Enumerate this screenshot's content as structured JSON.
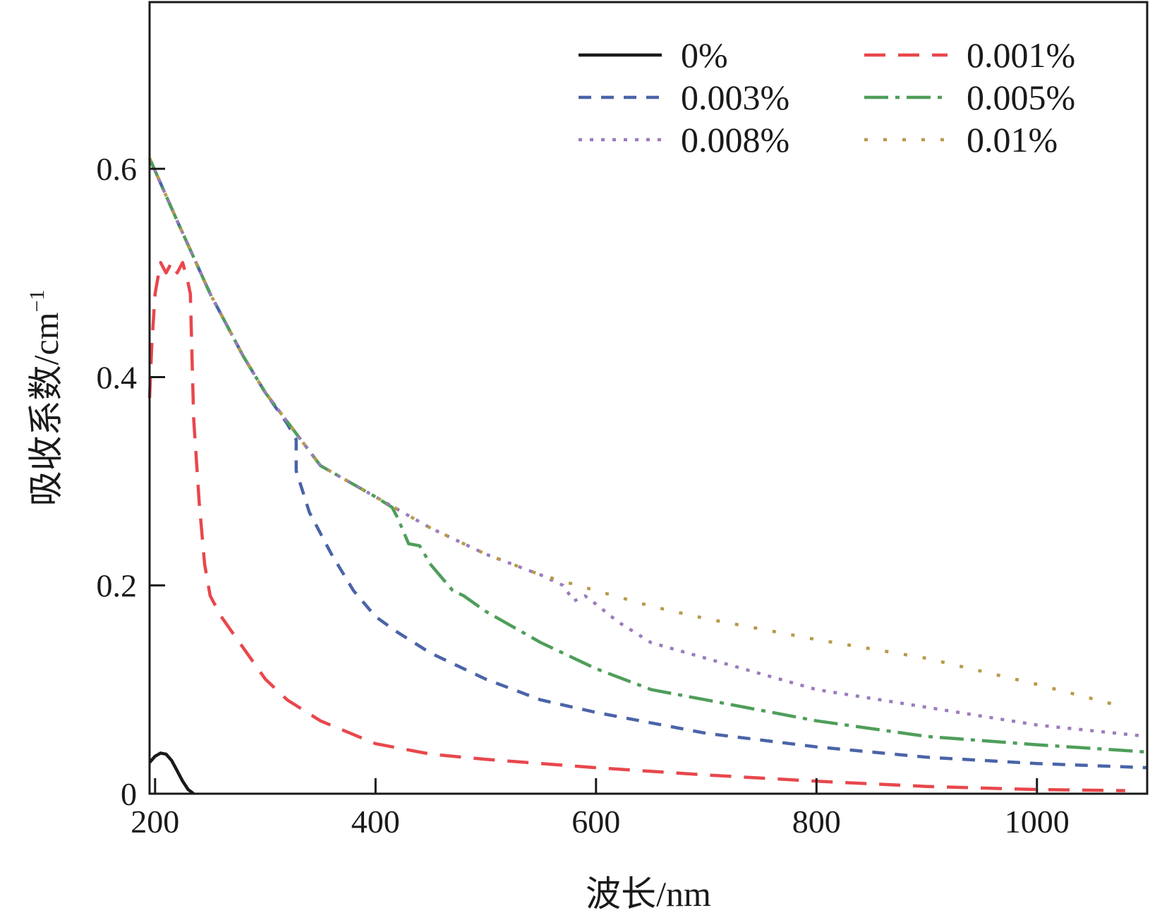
{
  "chart_data": {
    "type": "line",
    "xlabel": "波长/nm",
    "ylabel": "吸收系数/cm",
    "ylabel_sup": "−1",
    "xlim": [
      195,
      1100
    ],
    "ylim": [
      0,
      0.76
    ],
    "xticks": [
      200,
      400,
      600,
      800,
      1000
    ],
    "xtick_labels": [
      "200",
      "400",
      "600",
      "800",
      "1000"
    ],
    "yticks": [
      0,
      0.2,
      0.4,
      0.6
    ],
    "ytick_labels": [
      "0",
      "0.2",
      "0.4",
      "0.6"
    ],
    "grid": false,
    "legend_position": "top-right",
    "series": [
      {
        "name": "0%",
        "color": "#1a1a1a",
        "style": "solid",
        "x": [
          195,
          200,
          205,
          210,
          215,
          220,
          225,
          230,
          235
        ],
        "y": [
          0.03,
          0.036,
          0.039,
          0.038,
          0.032,
          0.022,
          0.012,
          0.004,
          0.0
        ]
      },
      {
        "name": "0.001%",
        "color": "#e8474c",
        "style": "dashed",
        "x": [
          195,
          197,
          200,
          205,
          210,
          215,
          220,
          225,
          230,
          232,
          235,
          240,
          245,
          250,
          260,
          270,
          280,
          300,
          320,
          350,
          400,
          450,
          500,
          600,
          700,
          800,
          900,
          1000,
          1080
        ],
        "y": [
          0.38,
          0.43,
          0.48,
          0.51,
          0.5,
          0.51,
          0.5,
          0.51,
          0.49,
          0.48,
          0.36,
          0.28,
          0.22,
          0.19,
          0.17,
          0.155,
          0.14,
          0.11,
          0.09,
          0.07,
          0.048,
          0.038,
          0.033,
          0.025,
          0.018,
          0.012,
          0.007,
          0.004,
          0.003
        ]
      },
      {
        "name": "0.003%",
        "color": "#4a64a8",
        "style": "dashed-short",
        "x": [
          195,
          220,
          250,
          280,
          300,
          320,
          328,
          328,
          340,
          360,
          380,
          400,
          420,
          450,
          500,
          550,
          600,
          700,
          800,
          900,
          1000,
          1100
        ],
        "y": [
          0.61,
          0.55,
          0.48,
          0.42,
          0.385,
          0.355,
          0.34,
          0.31,
          0.27,
          0.23,
          0.195,
          0.17,
          0.155,
          0.135,
          0.11,
          0.09,
          0.078,
          0.058,
          0.045,
          0.035,
          0.029,
          0.025
        ]
      },
      {
        "name": "0.005%",
        "color": "#4e9e5a",
        "style": "dash-dot",
        "x": [
          195,
          220,
          250,
          280,
          300,
          350,
          400,
          415,
          420,
          430,
          440,
          450,
          470,
          480,
          500,
          550,
          600,
          650,
          700,
          800,
          900,
          1000,
          1100
        ],
        "y": [
          0.61,
          0.55,
          0.48,
          0.42,
          0.385,
          0.315,
          0.285,
          0.275,
          0.265,
          0.24,
          0.238,
          0.22,
          0.195,
          0.19,
          0.175,
          0.145,
          0.12,
          0.1,
          0.09,
          0.07,
          0.055,
          0.047,
          0.04
        ]
      },
      {
        "name": "0.008%",
        "color": "#9b7bbd",
        "style": "dotted",
        "x": [
          195,
          220,
          250,
          280,
          300,
          350,
          400,
          450,
          500,
          550,
          570,
          580,
          590,
          600,
          620,
          650,
          700,
          800,
          900,
          1000,
          1100
        ],
        "y": [
          0.61,
          0.55,
          0.48,
          0.42,
          0.385,
          0.315,
          0.285,
          0.255,
          0.23,
          0.21,
          0.2,
          0.185,
          0.19,
          0.182,
          0.165,
          0.145,
          0.13,
          0.1,
          0.083,
          0.066,
          0.055
        ]
      },
      {
        "name": "0.01%",
        "color": "#b89a4a",
        "style": "dotted-sparse",
        "x": [
          195,
          220,
          250,
          280,
          300,
          350,
          400,
          450,
          500,
          550,
          600,
          650,
          700,
          800,
          900,
          1000,
          1080
        ],
        "y": [
          0.61,
          0.55,
          0.48,
          0.42,
          0.385,
          0.315,
          0.285,
          0.255,
          0.23,
          0.21,
          0.195,
          0.18,
          0.168,
          0.148,
          0.13,
          0.105,
          0.083
        ]
      }
    ]
  }
}
